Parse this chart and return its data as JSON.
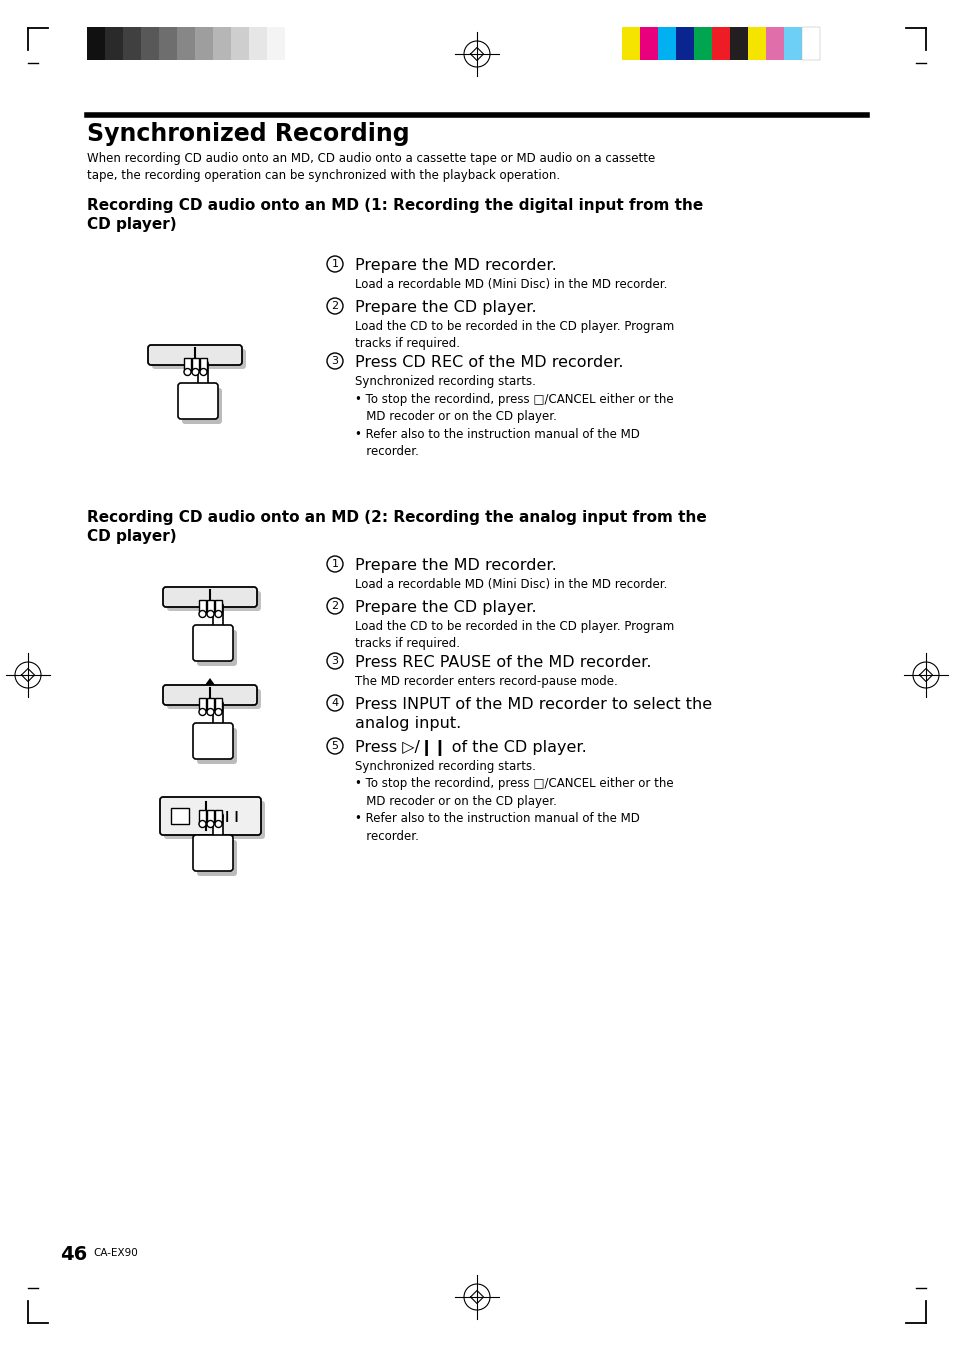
{
  "title": "Synchronized Recording",
  "subtitle": "When recording CD audio onto an MD, CD audio onto a cassette tape or MD audio on a cassette\ntape, the recording operation can be synchronized with the playback operation.",
  "section1_title": "Recording CD audio onto an MD (1: Recording the digital input from the\nCD player)",
  "section1_steps": [
    {
      "num": "1",
      "head": "Prepare the MD recorder.",
      "body": "Load a recordable MD (Mini Disc) in the MD recorder."
    },
    {
      "num": "2",
      "head": "Prepare the CD player.",
      "body": "Load the CD to be recorded in the CD player. Program\ntracks if required."
    },
    {
      "num": "3",
      "head": "Press CD REC of the MD recorder.",
      "body": "Synchronized recording starts.\n• To stop the recordind, press □/CANCEL either or the\n   MD recoder or on the CD player.\n• Refer also to the instruction manual of the MD\n   recorder."
    }
  ],
  "section2_title": "Recording CD audio onto an MD (2: Recording the analog input from the\nCD player)",
  "section2_steps": [
    {
      "num": "1",
      "head": "Prepare the MD recorder.",
      "body": "Load a recordable MD (Mini Disc) in the MD recorder."
    },
    {
      "num": "2",
      "head": "Prepare the CD player.",
      "body": "Load the CD to be recorded in the CD player. Program\ntracks if required."
    },
    {
      "num": "3",
      "head": "Press REC PAUSE of the MD recorder.",
      "body": "The MD recorder enters record-pause mode."
    },
    {
      "num": "4",
      "head": "Press INPUT of the MD recorder to select the\nanalog input.",
      "body": ""
    },
    {
      "num": "5",
      "head": "Press ▷/❙❙ of the CD player.",
      "body": "Synchronized recording starts.\n• To stop the recordind, press □/CANCEL either or the\n   MD recoder or on the CD player.\n• Refer also to the instruction manual of the MD\n   recorder."
    }
  ],
  "page_num": "46",
  "page_model": "CA-EX90",
  "bg_color": "#ffffff",
  "text_color": "#000000",
  "gray_bar_colors": [
    "#111111",
    "#2a2a2a",
    "#404040",
    "#585858",
    "#6e6e6e",
    "#878787",
    "#9e9e9e",
    "#b6b6b6",
    "#cecece",
    "#e6e6e6",
    "#f4f4f4"
  ],
  "color_bar_colors": [
    "#f5e400",
    "#e8007d",
    "#00b0f0",
    "#0a2590",
    "#00a550",
    "#ee1c24",
    "#231f20",
    "#f5e400",
    "#e06eaa",
    "#6ecff6",
    "#ffffff"
  ]
}
